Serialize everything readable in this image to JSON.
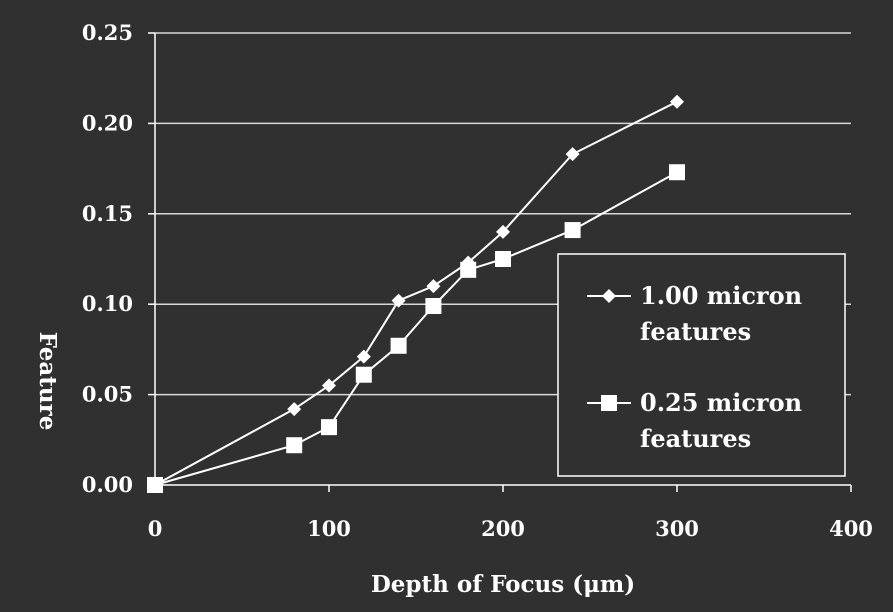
{
  "chart_data": {
    "type": "line",
    "title": "",
    "xlabel": "Depth of Focus (μm)",
    "ylabel": "Feature",
    "xlim": [
      0,
      400
    ],
    "ylim": [
      0,
      0.25
    ],
    "xticks": [
      "0",
      "100",
      "200",
      "300",
      "400"
    ],
    "yticks": [
      "0.00",
      "0.05",
      "0.10",
      "0.15",
      "0.20",
      "0.25"
    ],
    "grid": "horizontal",
    "legend_position": "right",
    "series": [
      {
        "name": "1.00 micron features",
        "legend_lines": [
          "1.00 micron",
          "features"
        ],
        "marker": "diamond",
        "color": "#ffffff",
        "x": [
          0,
          80,
          100,
          120,
          140,
          160,
          180,
          200,
          240,
          300
        ],
        "y": [
          0.0,
          0.042,
          0.055,
          0.071,
          0.102,
          0.11,
          0.123,
          0.14,
          0.183,
          0.212
        ]
      },
      {
        "name": "0.25 micron features",
        "legend_lines": [
          "0.25 micron",
          "features"
        ],
        "marker": "square",
        "color": "#ffffff",
        "x": [
          0,
          80,
          100,
          120,
          140,
          160,
          180,
          200,
          240,
          300
        ],
        "y": [
          0.0,
          0.022,
          0.032,
          0.061,
          0.077,
          0.099,
          0.119,
          0.125,
          0.141,
          0.173
        ]
      }
    ]
  }
}
